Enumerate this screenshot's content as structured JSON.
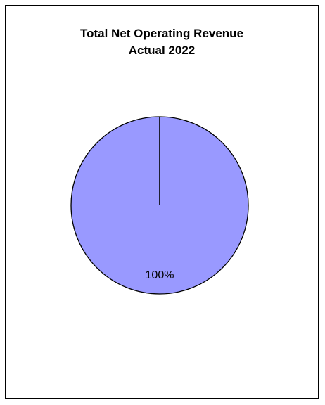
{
  "chart_data": {
    "type": "pie",
    "title_lines": [
      "Total Net Operating Revenue",
      "Actual 2022"
    ],
    "slices": [
      {
        "name": "",
        "value": 100,
        "label": "100%",
        "color": "#9999ff"
      }
    ],
    "legend": "none"
  }
}
